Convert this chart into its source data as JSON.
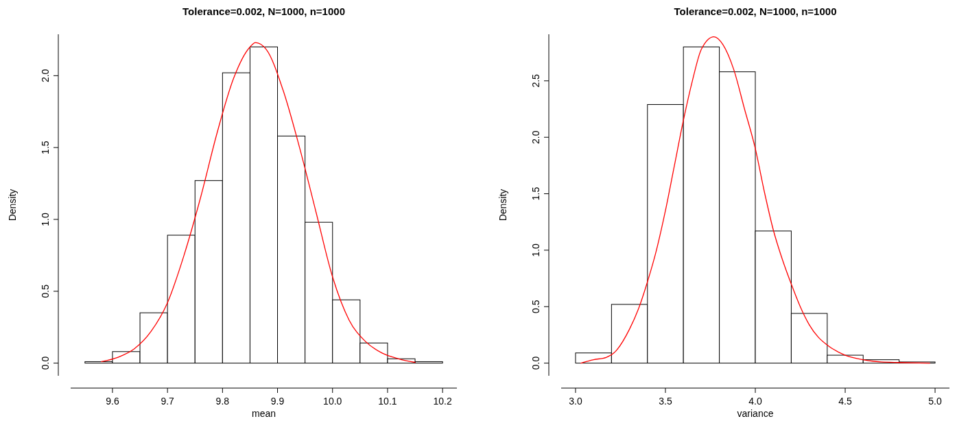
{
  "chart_data": [
    {
      "type": "histogram",
      "title": "Tolerance=0.002, N=1000, n=1000",
      "xlabel": "mean",
      "ylabel": "Density",
      "bins": [
        9.55,
        9.6,
        9.65,
        9.7,
        9.75,
        9.8,
        9.85,
        9.9,
        9.95,
        10.0,
        10.05,
        10.1,
        10.15,
        10.2
      ],
      "series": [
        {
          "color": "#ffffff",
          "values": [
            0.01,
            0.08,
            0.35,
            0.89,
            1.27,
            2.02,
            2.2,
            1.58,
            0.98,
            0.44,
            0.14,
            0.03,
            0.01
          ]
        },
        {
          "type": "line",
          "color": "#ff0000",
          "x": [
            9.58,
            9.61,
            9.64,
            9.67,
            9.7,
            9.73,
            9.76,
            9.79,
            9.82,
            9.85,
            9.86,
            9.88,
            9.91,
            9.94,
            9.97,
            10.0,
            10.03,
            10.06,
            10.09,
            10.12,
            10.15
          ],
          "values": [
            0.01,
            0.04,
            0.1,
            0.22,
            0.42,
            0.75,
            1.15,
            1.6,
            1.98,
            2.2,
            2.23,
            2.18,
            1.9,
            1.5,
            1.05,
            0.6,
            0.3,
            0.15,
            0.07,
            0.03,
            0.005
          ]
        }
      ],
      "xlim": [
        9.524,
        10.226
      ],
      "xticks": [
        9.6,
        9.7,
        9.8,
        9.9,
        {
          "value": 10.0,
          "label": "10.0"
        },
        10.1,
        10.2
      ],
      "ylim": [
        -0.088,
        2.288
      ],
      "yticks": [
        {
          "value": 0,
          "label": "0.0"
        },
        0.5,
        {
          "value": 1,
          "label": "1.0"
        },
        1.5,
        {
          "value": 2,
          "label": "2.0"
        }
      ],
      "grid": false
    },
    {
      "type": "histogram",
      "title": "Tolerance=0.002, N=1000, n=1000",
      "xlabel": "variance",
      "ylabel": "Density",
      "bins": [
        3.0,
        3.2,
        3.4,
        3.6,
        3.8,
        4.0,
        4.2,
        4.4,
        4.6,
        4.8,
        5.0
      ],
      "series": [
        {
          "color": "#ffffff",
          "values": [
            0.09,
            0.52,
            2.29,
            2.8,
            2.58,
            1.17,
            0.44,
            0.07,
            0.03,
            0.01
          ]
        },
        {
          "type": "line",
          "color": "#ff0000",
          "x": [
            3.03,
            3.1,
            3.17,
            3.22,
            3.3,
            3.35,
            3.4,
            3.45,
            3.5,
            3.55,
            3.6,
            3.65,
            3.7,
            3.77,
            3.82,
            3.88,
            3.94,
            4.0,
            4.05,
            4.1,
            4.15,
            4.2,
            4.25,
            4.3,
            4.35,
            4.4,
            4.5,
            4.6,
            4.7,
            4.8,
            4.97
          ],
          "values": [
            0.0,
            0.03,
            0.05,
            0.1,
            0.3,
            0.48,
            0.72,
            1.0,
            1.35,
            1.75,
            2.15,
            2.5,
            2.78,
            2.89,
            2.82,
            2.6,
            2.25,
            1.9,
            1.52,
            1.18,
            0.92,
            0.7,
            0.5,
            0.34,
            0.23,
            0.16,
            0.07,
            0.03,
            0.01,
            0.005,
            0.0
          ]
        }
      ],
      "xlim": [
        2.92,
        5.08
      ],
      "xticks": [
        {
          "value": 3,
          "label": "3.0"
        },
        3.5,
        {
          "value": 4,
          "label": "4.0"
        },
        4.5,
        {
          "value": 5,
          "label": "5.0"
        }
      ],
      "ylim": [
        -0.112,
        2.912
      ],
      "yticks": [
        {
          "value": 0,
          "label": "0.0"
        },
        0.5,
        {
          "value": 1,
          "label": "1.0"
        },
        1.5,
        {
          "value": 2,
          "label": "2.0"
        },
        2.5
      ],
      "grid": false
    }
  ]
}
